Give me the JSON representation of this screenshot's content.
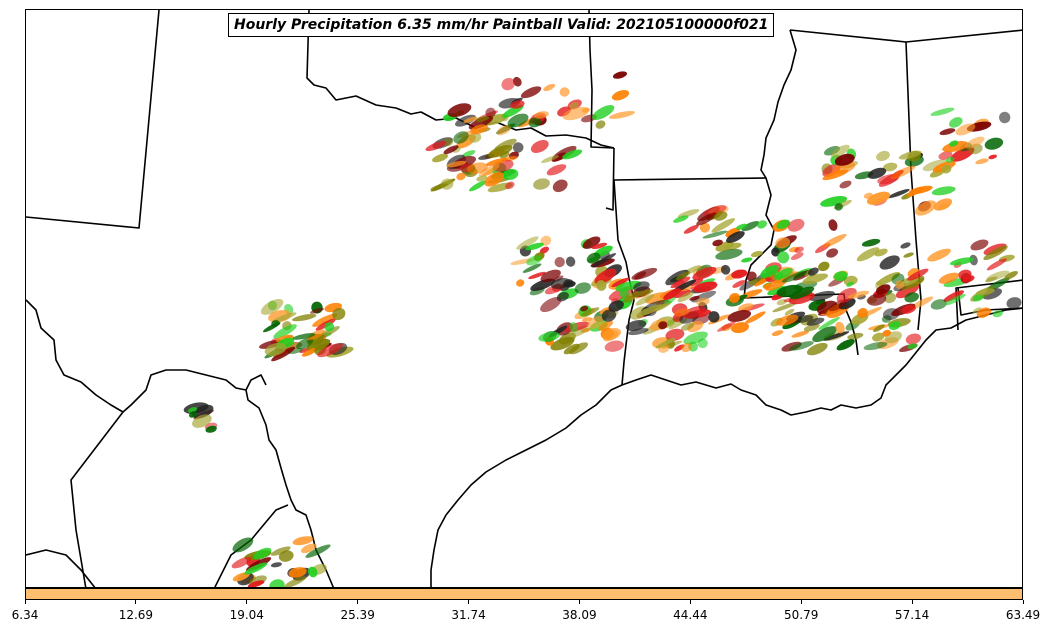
{
  "title": "Hourly Precipitation 6.35 mm/hr Paintball Valid: 202105100000f021",
  "colorbar": {
    "color": "#fdbf6f",
    "ticks": [
      "6.34",
      "12.69",
      "19.04",
      "25.39",
      "31.74",
      "38.09",
      "44.44",
      "50.79",
      "57.14",
      "63.49"
    ]
  },
  "paint_colors": [
    "#e31a1c",
    "#ff7f00",
    "#fe9929",
    "#808000",
    "#a6a633",
    "#006400",
    "#1fd01f",
    "#7a0000",
    "#222222"
  ]
}
